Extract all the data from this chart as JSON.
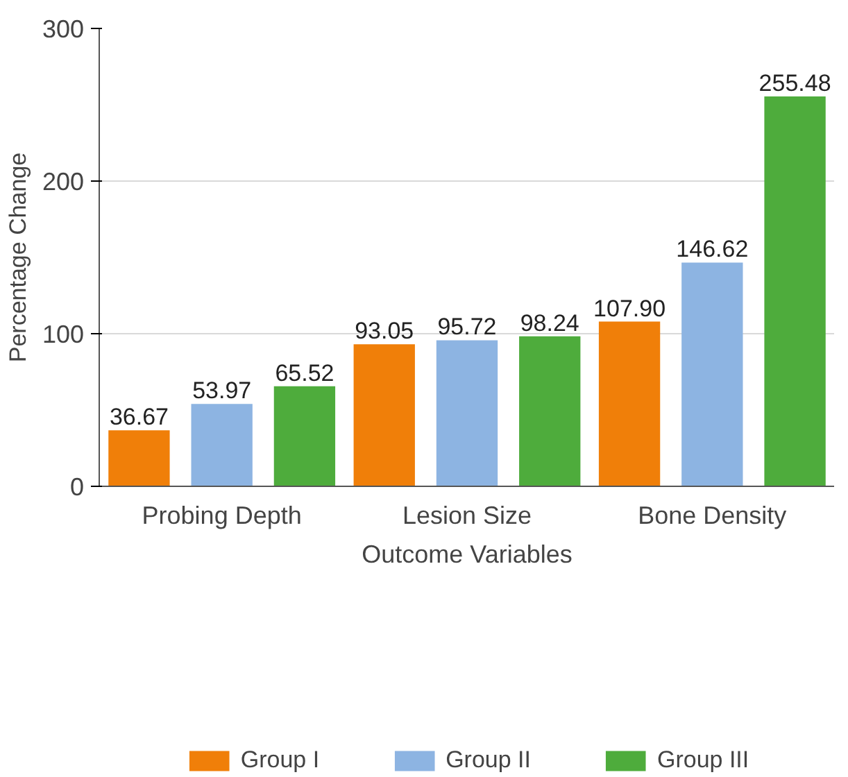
{
  "chart_data": {
    "type": "bar",
    "xlabel": "Outcome Variables",
    "ylabel": "Percentage Change",
    "categories": [
      "Probing Depth",
      "Lesion Size",
      "Bone Density"
    ],
    "series": [
      {
        "name": "Group I",
        "color": "#f07f09",
        "values": [
          36.67,
          93.05,
          107.9
        ],
        "value_labels": [
          "36.67",
          "93.05",
          "107.90"
        ]
      },
      {
        "name": "Group II",
        "color": "#8db4e2",
        "values": [
          53.97,
          95.72,
          146.62
        ],
        "value_labels": [
          "53.97",
          "95.72",
          "146.62"
        ]
      },
      {
        "name": "Group III",
        "color": "#4eac3c",
        "values": [
          65.52,
          98.24,
          255.48
        ],
        "value_labels": [
          "65.52",
          "98.24",
          "255.48"
        ]
      }
    ],
    "ylim": [
      0,
      300
    ],
    "yticks": [
      0,
      100,
      200,
      300
    ],
    "grid": "y",
    "legend": "bottom"
  }
}
